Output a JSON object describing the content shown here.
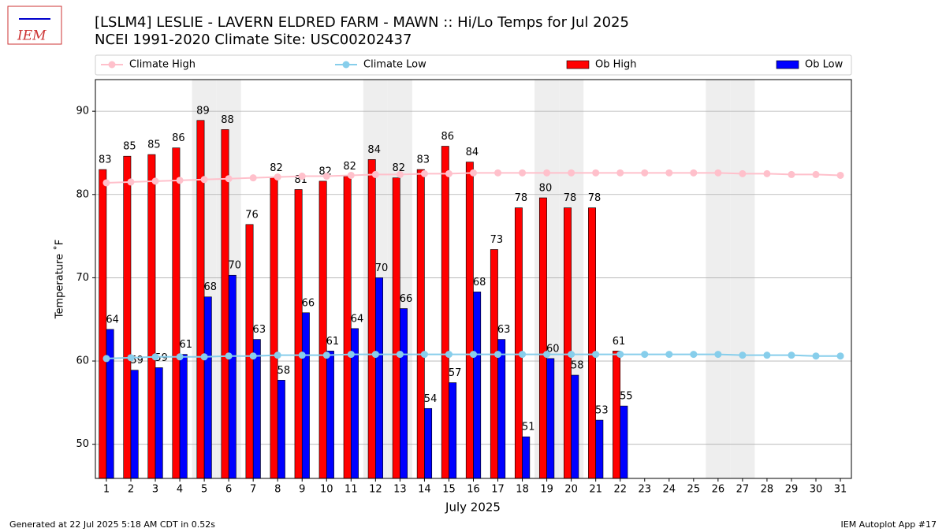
{
  "chart_data": {
    "type": "bar",
    "logo_text": "IEM",
    "title": "[LSLM4] LESLIE - LAVERN ELDRED FARM - MAWN :: Hi/Lo Temps for Jul 2025",
    "subtitle": "NCEI 1991-2020 Climate Site: USC00202437",
    "y_label": "Temperature ˚F",
    "x_label": "July 2025",
    "footer_left": "Generated at 22 Jul 2025 5:18 AM CDT in 0.52s",
    "footer_right": "IEM Autoplot App #17",
    "x": [
      1,
      2,
      3,
      4,
      5,
      6,
      7,
      8,
      9,
      10,
      11,
      12,
      13,
      14,
      15,
      16,
      17,
      18,
      19,
      20,
      21,
      22,
      23,
      24,
      25,
      26,
      27,
      28,
      29,
      30,
      31
    ],
    "xlim": [
      0.55,
      31.45
    ],
    "xticks": [
      1,
      2,
      3,
      4,
      5,
      6,
      7,
      8,
      9,
      10,
      11,
      12,
      13,
      14,
      15,
      16,
      17,
      18,
      19,
      20,
      21,
      22,
      23,
      24,
      25,
      26,
      27,
      28,
      29,
      30,
      31
    ],
    "ylim": [
      45.9,
      93.8
    ],
    "yticks": [
      50,
      60,
      70,
      80,
      90
    ],
    "grid": true,
    "legend": "top",
    "shaded_days": [
      5,
      6,
      12,
      13,
      19,
      20,
      26,
      27
    ],
    "shade_color": "#eeeeee",
    "series": [
      {
        "name": "Climate High",
        "kind": "line",
        "color": "#ffc0cb",
        "values": [
          81.4,
          81.5,
          81.6,
          81.7,
          81.8,
          81.9,
          82.0,
          82.1,
          82.2,
          82.2,
          82.3,
          82.4,
          82.4,
          82.5,
          82.5,
          82.6,
          82.6,
          82.6,
          82.6,
          82.6,
          82.6,
          82.6,
          82.6,
          82.6,
          82.6,
          82.6,
          82.5,
          82.5,
          82.4,
          82.4,
          82.3
        ]
      },
      {
        "name": "Climate Low",
        "kind": "line",
        "color": "#87ceeb",
        "values": [
          60.3,
          60.4,
          60.5,
          60.5,
          60.5,
          60.6,
          60.6,
          60.7,
          60.7,
          60.7,
          60.8,
          60.8,
          60.8,
          60.8,
          60.8,
          60.8,
          60.8,
          60.8,
          60.8,
          60.8,
          60.8,
          60.8,
          60.8,
          60.8,
          60.8,
          60.8,
          60.7,
          60.7,
          60.7,
          60.6,
          60.6
        ]
      },
      {
        "name": "Ob High",
        "kind": "bar",
        "color": "#ff0000",
        "values": [
          83.0,
          84.6,
          84.8,
          85.6,
          88.9,
          87.8,
          76.4,
          82.0,
          80.6,
          81.6,
          82.2,
          84.2,
          82.0,
          83.0,
          85.8,
          83.9,
          73.4,
          78.4,
          79.6,
          78.4,
          78.4,
          61.2,
          null,
          null,
          null,
          null,
          null,
          null,
          null,
          null,
          null
        ],
        "value_labels": [
          "83",
          "85",
          "85",
          "86",
          "89",
          "88",
          "76",
          "82",
          "81",
          "82",
          "82",
          "84",
          "82",
          "83",
          "86",
          "84",
          "73",
          "78",
          "80",
          "78",
          "78",
          "61",
          null,
          null,
          null,
          null,
          null,
          null,
          null,
          null,
          null
        ]
      },
      {
        "name": "Ob Low",
        "kind": "bar",
        "color": "#0000ff",
        "values": [
          63.8,
          58.9,
          59.2,
          60.8,
          67.7,
          70.3,
          62.6,
          57.7,
          65.8,
          61.2,
          63.9,
          70.0,
          66.3,
          54.3,
          57.4,
          68.3,
          62.6,
          50.9,
          60.3,
          58.3,
          52.9,
          54.6,
          null,
          null,
          null,
          null,
          null,
          null,
          null,
          null,
          null
        ],
        "value_labels": [
          "64",
          "59",
          "59",
          "61",
          "68",
          "70",
          "63",
          "58",
          "66",
          "61",
          "64",
          "70",
          "66",
          "54",
          "57",
          "68",
          "63",
          "51",
          "60",
          "58",
          "53",
          "55",
          null,
          null,
          null,
          null,
          null,
          null,
          null,
          null,
          null
        ]
      }
    ]
  }
}
